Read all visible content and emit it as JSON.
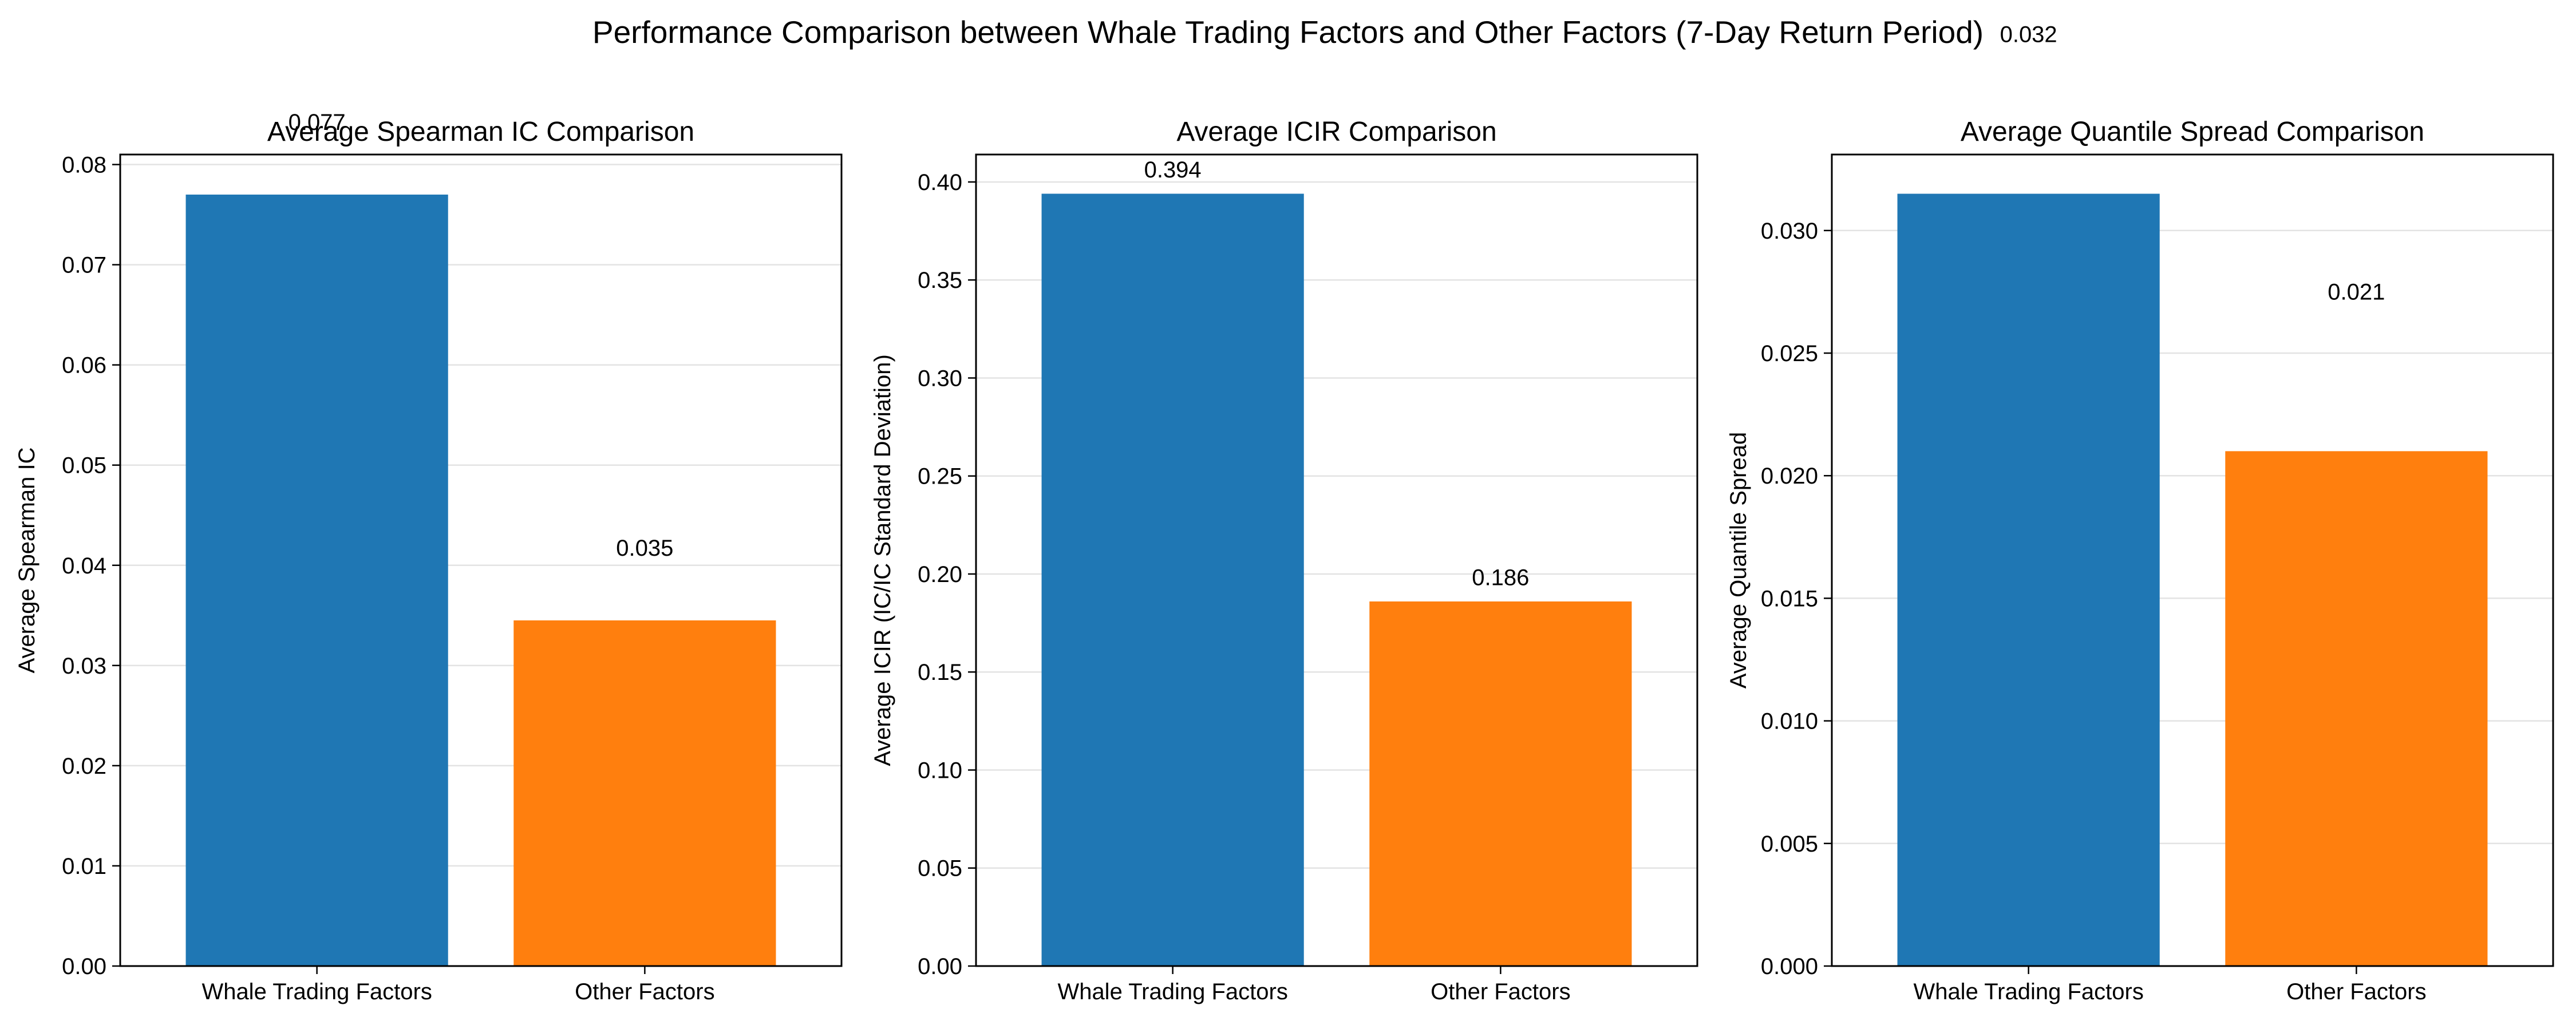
{
  "figure": {
    "title": "Performance Comparison between Whale Trading Factors and Other Factors (7-Day Return Period)"
  },
  "chart_data": [
    {
      "type": "bar",
      "title": "Average Spearman IC Comparison",
      "xlabel": "",
      "ylabel": "Average Spearman IC",
      "categories": [
        "Whale Trading Factors",
        "Other Factors"
      ],
      "values": [
        0.077,
        0.0345
      ],
      "value_labels": [
        "0.077",
        "0.035"
      ],
      "label_offset": 0.006,
      "colors": [
        "#1f77b4",
        "#ff7f0e"
      ],
      "ylim": [
        0,
        0.081
      ],
      "yticks": [
        0,
        0.01,
        0.02,
        0.03,
        0.04,
        0.05,
        0.06,
        0.07,
        0.08
      ],
      "ytick_labels": [
        "0.00",
        "0.01",
        "0.02",
        "0.03",
        "0.04",
        "0.05",
        "0.06",
        "0.07",
        "0.08"
      ],
      "grid": "y",
      "legend": "none"
    },
    {
      "type": "bar",
      "title": "Average ICIR Comparison",
      "xlabel": "",
      "ylabel": "Average ICIR (IC/IC Standard Deviation)",
      "categories": [
        "Whale Trading Factors",
        "Other Factors"
      ],
      "values": [
        0.394,
        0.186
      ],
      "value_labels": [
        "0.394",
        "0.186"
      ],
      "label_offset": 0.006,
      "colors": [
        "#1f77b4",
        "#ff7f0e"
      ],
      "ylim": [
        0,
        0.414
      ],
      "yticks": [
        0,
        0.05,
        0.1,
        0.15,
        0.2,
        0.25,
        0.3,
        0.35,
        0.4
      ],
      "ytick_labels": [
        "0.00",
        "0.05",
        "0.10",
        "0.15",
        "0.20",
        "0.25",
        "0.30",
        "0.35",
        "0.40"
      ],
      "grid": "y",
      "legend": "none"
    },
    {
      "type": "bar",
      "title": "Average Quantile Spread Comparison",
      "xlabel": "",
      "ylabel": "Average Quantile Spread",
      "categories": [
        "Whale Trading Factors",
        "Other Factors"
      ],
      "values": [
        0.0315,
        0.021
      ],
      "value_labels": [
        "0.032",
        "0.021"
      ],
      "label_offset": 0.006,
      "colors": [
        "#1f77b4",
        "#ff7f0e"
      ],
      "ylim": [
        0,
        0.0331
      ],
      "yticks": [
        0,
        0.005,
        0.01,
        0.015,
        0.02,
        0.025,
        0.03
      ],
      "ytick_labels": [
        "0.000",
        "0.005",
        "0.010",
        "0.015",
        "0.020",
        "0.025",
        "0.030"
      ],
      "grid": "y",
      "legend": "none"
    }
  ]
}
